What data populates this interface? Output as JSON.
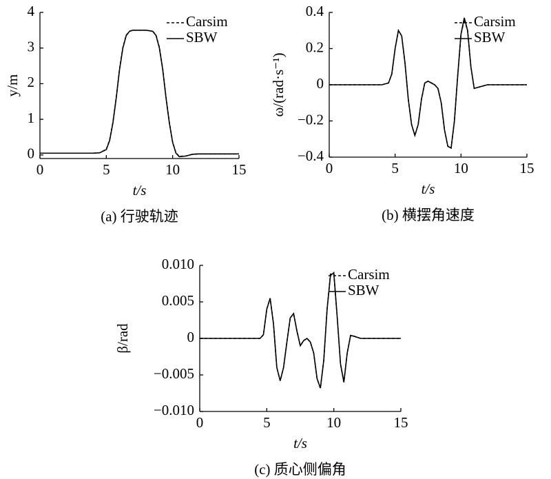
{
  "chart_data": [
    {
      "type": "line",
      "caption": "(a) 行驶轨迹",
      "xlabel": "t/s",
      "ylabel": "y/m",
      "x": [
        0,
        1,
        2,
        3,
        4,
        4.5,
        5,
        5.25,
        5.5,
        5.75,
        6,
        6.25,
        6.5,
        6.75,
        7,
        7.5,
        8,
        8.5,
        8.75,
        9,
        9.25,
        9.5,
        9.75,
        10,
        10.25,
        10.5,
        11,
        11.5,
        12,
        13,
        14,
        15
      ],
      "series": [
        {
          "name": "Carsim",
          "color": "#000000",
          "line_style": "dashed",
          "values": [
            0.05,
            0.05,
            0.05,
            0.05,
            0.05,
            0.06,
            0.16,
            0.42,
            0.92,
            1.62,
            2.42,
            3.02,
            3.36,
            3.47,
            3.5,
            3.5,
            3.5,
            3.47,
            3.36,
            3.02,
            2.42,
            1.62,
            0.92,
            0.36,
            0.06,
            -0.04,
            -0.03,
            0.02,
            0.03,
            0.03,
            0.03,
            0.03
          ]
        },
        {
          "name": "SBW",
          "color": "#000000",
          "line_style": "solid",
          "values": [
            0.05,
            0.05,
            0.05,
            0.05,
            0.05,
            0.06,
            0.15,
            0.4,
            0.9,
            1.6,
            2.4,
            3.0,
            3.35,
            3.47,
            3.5,
            3.5,
            3.5,
            3.47,
            3.35,
            3.0,
            2.4,
            1.6,
            0.9,
            0.35,
            0.05,
            -0.05,
            -0.03,
            0.02,
            0.03,
            0.03,
            0.03,
            0.03
          ]
        }
      ],
      "xlim": [
        0,
        15
      ],
      "xticks": [
        0,
        5,
        10,
        15
      ],
      "ylim": [
        -0.1,
        4
      ],
      "yticks": [
        0,
        1,
        2,
        3,
        4
      ],
      "legend": "upper right"
    },
    {
      "type": "line",
      "caption": "(b) 横摆角速度",
      "xlabel": "t/s",
      "ylabel": "ω/(rad·s⁻¹)",
      "x": [
        0,
        1,
        2,
        3,
        4,
        4.5,
        4.75,
        5,
        5.25,
        5.5,
        5.75,
        6,
        6.25,
        6.5,
        6.75,
        7,
        7.25,
        7.5,
        7.75,
        8,
        8.25,
        8.5,
        8.75,
        9,
        9.25,
        9.5,
        9.75,
        10,
        10.25,
        10.5,
        10.75,
        11,
        11.5,
        12,
        13,
        14,
        15
      ],
      "series": [
        {
          "name": "Carsim",
          "color": "#000000",
          "line_style": "dashed",
          "values": [
            0,
            0,
            0,
            0,
            0,
            0.01,
            0.06,
            0.2,
            0.3,
            0.27,
            0.12,
            -0.08,
            -0.22,
            -0.28,
            -0.22,
            -0.08,
            0.01,
            0.02,
            0.01,
            0,
            -0.02,
            -0.1,
            -0.25,
            -0.34,
            -0.35,
            -0.2,
            0.05,
            0.28,
            0.36,
            0.3,
            0.1,
            -0.02,
            -0.01,
            0,
            0,
            0,
            0
          ]
        },
        {
          "name": "SBW",
          "color": "#000000",
          "line_style": "solid",
          "values": [
            0,
            0,
            0,
            0,
            0,
            0.01,
            0.06,
            0.2,
            0.3,
            0.27,
            0.12,
            -0.08,
            -0.22,
            -0.28,
            -0.22,
            -0.08,
            0.01,
            0.02,
            0.01,
            0,
            -0.02,
            -0.1,
            -0.25,
            -0.34,
            -0.35,
            -0.2,
            0.05,
            0.28,
            0.37,
            0.3,
            0.1,
            -0.02,
            -0.01,
            0,
            0,
            0,
            0
          ]
        }
      ],
      "xlim": [
        0,
        15
      ],
      "xticks": [
        0,
        5,
        10,
        15
      ],
      "ylim": [
        -0.4,
        0.4
      ],
      "yticks": [
        {
          "value": -0.4,
          "label": "−0.4"
        },
        {
          "value": -0.2,
          "label": "−0.2"
        },
        0,
        0.2,
        0.4
      ],
      "legend": "upper right"
    },
    {
      "type": "line",
      "caption": "(c) 质心侧偏角",
      "xlabel": "t/s",
      "ylabel": "β/rad",
      "x": [
        0,
        1,
        2,
        3,
        4,
        4.5,
        4.75,
        5,
        5.25,
        5.5,
        5.75,
        6,
        6.25,
        6.5,
        6.75,
        7,
        7.25,
        7.5,
        7.75,
        8,
        8.25,
        8.5,
        8.75,
        9,
        9.25,
        9.5,
        9.75,
        10,
        10.25,
        10.5,
        10.75,
        11,
        11.25,
        11.5,
        12,
        13,
        14,
        15
      ],
      "series": [
        {
          "name": "Carsim",
          "color": "#000000",
          "line_style": "dashed",
          "values": [
            0,
            0,
            0,
            0,
            0,
            0,
            0.0005,
            0.004,
            0.0055,
            0.002,
            -0.004,
            -0.0058,
            -0.004,
            -0.0005,
            0.0028,
            0.0034,
            0.001,
            -0.001,
            -0.0003,
            0,
            -0.0005,
            -0.002,
            -0.0055,
            -0.0068,
            -0.003,
            0.004,
            0.0088,
            0.0088,
            0.003,
            -0.0035,
            -0.006,
            -0.002,
            0.0004,
            0.0003,
            0,
            0,
            0,
            0
          ]
        },
        {
          "name": "SBW",
          "color": "#000000",
          "line_style": "solid",
          "values": [
            0,
            0,
            0,
            0,
            0,
            0,
            0.0005,
            0.004,
            0.0055,
            0.002,
            -0.004,
            -0.0058,
            -0.004,
            -0.0005,
            0.0028,
            0.0034,
            0.001,
            -0.001,
            -0.0003,
            0,
            -0.0005,
            -0.002,
            -0.0055,
            -0.0068,
            -0.003,
            0.004,
            0.0086,
            0.009,
            0.003,
            -0.0035,
            -0.006,
            -0.002,
            0.0004,
            0.0003,
            0,
            0,
            0,
            0
          ]
        }
      ],
      "xlim": [
        0,
        15
      ],
      "xticks": [
        0,
        5,
        10,
        15
      ],
      "ylim": [
        -0.01,
        0.01
      ],
      "yticks": [
        {
          "value": -0.01,
          "label": "−0.010"
        },
        {
          "value": -0.005,
          "label": "−0.005"
        },
        0,
        0.005,
        {
          "value": 0.01,
          "label": "0.010"
        }
      ],
      "legend": "upper right"
    }
  ]
}
